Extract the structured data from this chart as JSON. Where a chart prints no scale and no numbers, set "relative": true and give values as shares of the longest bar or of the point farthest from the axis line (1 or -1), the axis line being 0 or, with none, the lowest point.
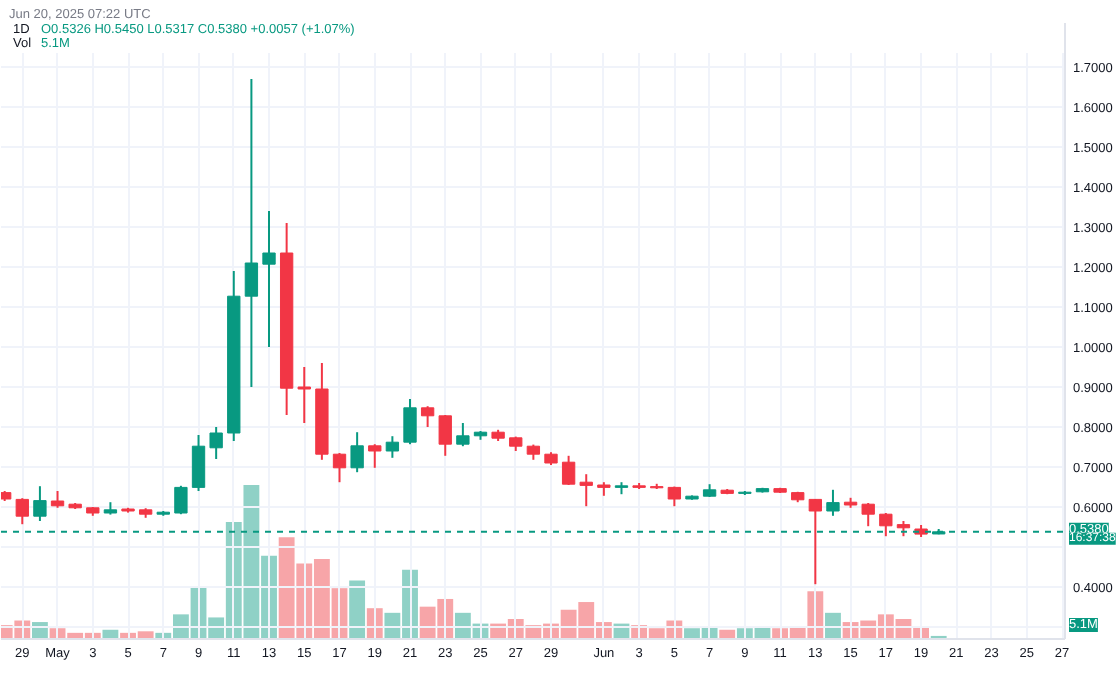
{
  "chart_data": [
    {
      "type": "candlestick",
      "title": "1D",
      "subtitle": "O0.5326 H0.5450 L0.5317 C0.5380 +0.0057 (+1.07%)",
      "annotations": [
        "Jun 20, 2025 07:22 UTC",
        "16:37:38"
      ],
      "x": [
        "2025-04-28",
        "2025-04-29",
        "2025-04-30",
        "2025-05-01",
        "2025-05-02",
        "2025-05-03",
        "2025-05-04",
        "2025-05-05",
        "2025-05-06",
        "2025-05-07",
        "2025-05-08",
        "2025-05-09",
        "2025-05-10",
        "2025-05-11",
        "2025-05-12",
        "2025-05-13",
        "2025-05-14",
        "2025-05-15",
        "2025-05-16",
        "2025-05-17",
        "2025-05-18",
        "2025-05-19",
        "2025-05-20",
        "2025-05-21",
        "2025-05-22",
        "2025-05-23",
        "2025-05-24",
        "2025-05-25",
        "2025-05-26",
        "2025-05-27",
        "2025-05-28",
        "2025-05-29",
        "2025-05-30",
        "2025-05-31",
        "2025-06-01",
        "2025-06-02",
        "2025-06-03",
        "2025-06-04",
        "2025-06-05",
        "2025-06-06",
        "2025-06-07",
        "2025-06-08",
        "2025-06-09",
        "2025-06-10",
        "2025-06-11",
        "2025-06-12",
        "2025-06-13",
        "2025-06-14",
        "2025-06-15",
        "2025-06-16",
        "2025-06-17",
        "2025-06-18",
        "2025-06-19",
        "2025-06-20"
      ],
      "ohlc": [
        [
          0.636,
          0.64,
          0.615,
          0.62
        ],
        [
          0.619,
          0.622,
          0.557,
          0.577
        ],
        [
          0.577,
          0.652,
          0.565,
          0.616
        ],
        [
          0.615,
          0.64,
          0.598,
          0.603
        ],
        [
          0.607,
          0.61,
          0.595,
          0.598
        ],
        [
          0.598,
          0.6,
          0.578,
          0.585
        ],
        [
          0.585,
          0.612,
          0.581,
          0.593
        ],
        [
          0.595,
          0.598,
          0.586,
          0.59
        ],
        [
          0.593,
          0.597,
          0.573,
          0.582
        ],
        [
          0.582,
          0.59,
          0.578,
          0.587
        ],
        [
          0.585,
          0.653,
          0.582,
          0.649
        ],
        [
          0.649,
          0.78,
          0.64,
          0.752
        ],
        [
          0.748,
          0.8,
          0.72,
          0.785
        ],
        [
          0.785,
          1.19,
          0.765,
          1.127
        ],
        [
          1.127,
          1.67,
          0.9,
          1.21
        ],
        [
          1.207,
          1.34,
          1.0,
          1.235
        ],
        [
          1.235,
          1.31,
          0.83,
          0.897
        ],
        [
          0.9,
          0.95,
          0.81,
          0.895
        ],
        [
          0.895,
          0.96,
          0.718,
          0.732
        ],
        [
          0.732,
          0.735,
          0.662,
          0.698
        ],
        [
          0.698,
          0.787,
          0.687,
          0.753
        ],
        [
          0.753,
          0.757,
          0.698,
          0.74
        ],
        [
          0.74,
          0.777,
          0.723,
          0.762
        ],
        [
          0.762,
          0.87,
          0.757,
          0.848
        ],
        [
          0.848,
          0.852,
          0.8,
          0.828
        ],
        [
          0.828,
          0.83,
          0.728,
          0.757
        ],
        [
          0.757,
          0.81,
          0.752,
          0.778
        ],
        [
          0.778,
          0.79,
          0.768,
          0.787
        ],
        [
          0.787,
          0.793,
          0.765,
          0.772
        ],
        [
          0.773,
          0.776,
          0.74,
          0.752
        ],
        [
          0.752,
          0.756,
          0.718,
          0.732
        ],
        [
          0.732,
          0.737,
          0.705,
          0.71
        ],
        [
          0.712,
          0.728,
          0.655,
          0.657
        ],
        [
          0.662,
          0.682,
          0.602,
          0.654
        ],
        [
          0.655,
          0.662,
          0.628,
          0.649
        ],
        [
          0.649,
          0.662,
          0.632,
          0.653
        ],
        [
          0.653,
          0.66,
          0.645,
          0.649
        ],
        [
          0.651,
          0.658,
          0.645,
          0.648
        ],
        [
          0.649,
          0.651,
          0.602,
          0.62
        ],
        [
          0.62,
          0.629,
          0.618,
          0.627
        ],
        [
          0.627,
          0.657,
          0.625,
          0.643
        ],
        [
          0.642,
          0.645,
          0.632,
          0.634
        ],
        [
          0.634,
          0.64,
          0.63,
          0.637
        ],
        [
          0.638,
          0.648,
          0.636,
          0.646
        ],
        [
          0.646,
          0.648,
          0.635,
          0.637
        ],
        [
          0.636,
          0.638,
          0.612,
          0.618
        ],
        [
          0.619,
          0.62,
          0.407,
          0.59
        ],
        [
          0.59,
          0.643,
          0.578,
          0.611
        ],
        [
          0.612,
          0.623,
          0.598,
          0.605
        ],
        [
          0.607,
          0.61,
          0.552,
          0.582
        ],
        [
          0.582,
          0.585,
          0.527,
          0.553
        ],
        [
          0.556,
          0.565,
          0.527,
          0.548
        ],
        [
          0.545,
          0.555,
          0.525,
          0.5323
        ],
        [
          0.5326,
          0.545,
          0.5317,
          0.538
        ]
      ],
      "colors": [
        "#f23645",
        "#f23645",
        "#089981",
        "#f23645",
        "#f23645",
        "#f23645",
        "#089981",
        "#f23645",
        "#f23645",
        "#089981",
        "#089981",
        "#089981",
        "#089981",
        "#089981",
        "#089981",
        "#089981",
        "#f23645",
        "#f23645",
        "#f23645",
        "#f23645",
        "#089981",
        "#f23645",
        "#089981",
        "#089981",
        "#f23645",
        "#f23645",
        "#089981",
        "#089981",
        "#f23645",
        "#f23645",
        "#f23645",
        "#f23645",
        "#f23645",
        "#f23645",
        "#f23645",
        "#089981",
        "#f23645",
        "#f23645",
        "#f23645",
        "#089981",
        "#089981",
        "#f23645",
        "#089981",
        "#089981",
        "#f23645",
        "#f23645",
        "#f23645",
        "#089981",
        "#f23645",
        "#f23645",
        "#f23645",
        "#f23645",
        "#f23645",
        "#089981"
      ],
      "xlim": [
        "2025-04-27T19:00",
        "2025-06-27T04:00"
      ],
      "xticks": [
        {
          "value": "2025-04-29",
          "label": "29"
        },
        {
          "value": "2025-05-01",
          "label": "May"
        },
        {
          "value": "2025-05-03",
          "label": "3"
        },
        {
          "value": "2025-05-05",
          "label": "5"
        },
        {
          "value": "2025-05-07",
          "label": "7"
        },
        {
          "value": "2025-05-09",
          "label": "9"
        },
        {
          "value": "2025-05-11",
          "label": "11"
        },
        {
          "value": "2025-05-13",
          "label": "13"
        },
        {
          "value": "2025-05-15",
          "label": "15"
        },
        {
          "value": "2025-05-17",
          "label": "17"
        },
        {
          "value": "2025-05-19",
          "label": "19"
        },
        {
          "value": "2025-05-21",
          "label": "21"
        },
        {
          "value": "2025-05-23",
          "label": "23"
        },
        {
          "value": "2025-05-25",
          "label": "25"
        },
        {
          "value": "2025-05-27",
          "label": "27"
        },
        {
          "value": "2025-05-29",
          "label": "29"
        },
        {
          "value": "2025-06-01",
          "label": "Jun"
        },
        {
          "value": "2025-06-03",
          "label": "3"
        },
        {
          "value": "2025-06-05",
          "label": "5"
        },
        {
          "value": "2025-06-07",
          "label": "7"
        },
        {
          "value": "2025-06-09",
          "label": "9"
        },
        {
          "value": "2025-06-11",
          "label": "11"
        },
        {
          "value": "2025-06-13",
          "label": "13"
        },
        {
          "value": "2025-06-15",
          "label": "15"
        },
        {
          "value": "2025-06-17",
          "label": "17"
        },
        {
          "value": "2025-06-19",
          "label": "19"
        },
        {
          "value": "2025-06-21",
          "label": "21"
        },
        {
          "value": "2025-06-23",
          "label": "23"
        },
        {
          "value": "2025-06-25",
          "label": "25"
        },
        {
          "value": "2025-06-27",
          "label": "27"
        }
      ],
      "ylim": [
        0.27,
        1.81
      ],
      "yticks": [
        {
          "value": 0.3,
          "label": null
        },
        {
          "value": 0.4,
          "label": "0.4000"
        },
        {
          "value": 0.5,
          "label": null
        },
        {
          "value": 0.6,
          "label": "0.6000"
        },
        {
          "value": 0.7,
          "label": "0.7000"
        },
        {
          "value": 0.8,
          "label": "0.8000"
        },
        {
          "value": 0.9,
          "label": "0.9000"
        },
        {
          "value": 1.0,
          "label": "1.0000"
        },
        {
          "value": 1.1,
          "label": "1.1000"
        },
        {
          "value": 1.2,
          "label": "1.2000"
        },
        {
          "value": 1.3,
          "label": "1.3000"
        },
        {
          "value": 1.4,
          "label": "1.4000"
        },
        {
          "value": 1.5,
          "label": "1.5000"
        },
        {
          "value": 1.6,
          "label": "1.6000"
        },
        {
          "value": 1.7,
          "label": "1.7000"
        }
      ],
      "ref_lines": [
        {
          "axis": "y",
          "value": 0.538,
          "label": "0.5380",
          "color": "#089981",
          "line_style": "dashed"
        }
      ],
      "grid": true
    },
    {
      "type": "bar",
      "relative": true,
      "tick_labels": false,
      "annotations": [
        "Vol",
        "5.1M",
        "5.1M"
      ],
      "x": [
        "2025-04-28",
        "2025-04-29",
        "2025-04-30",
        "2025-05-01",
        "2025-05-02",
        "2025-05-03",
        "2025-05-04",
        "2025-05-05",
        "2025-05-06",
        "2025-05-07",
        "2025-05-08",
        "2025-05-09",
        "2025-05-10",
        "2025-05-11",
        "2025-05-12",
        "2025-05-13",
        "2025-05-14",
        "2025-05-15",
        "2025-05-16",
        "2025-05-17",
        "2025-05-18",
        "2025-05-19",
        "2025-05-20",
        "2025-05-21",
        "2025-05-22",
        "2025-05-23",
        "2025-05-24",
        "2025-05-25",
        "2025-05-26",
        "2025-05-27",
        "2025-05-28",
        "2025-05-29",
        "2025-05-30",
        "2025-05-31",
        "2025-06-01",
        "2025-06-02",
        "2025-06-03",
        "2025-06-04",
        "2025-06-05",
        "2025-06-06",
        "2025-06-07",
        "2025-06-08",
        "2025-06-09",
        "2025-06-10",
        "2025-06-11",
        "2025-06-12",
        "2025-06-13",
        "2025-06-14",
        "2025-06-15",
        "2025-06-16",
        "2025-06-17",
        "2025-06-18",
        "2025-06-19",
        "2025-06-20"
      ],
      "xlim": [
        "2025-04-27T19:00",
        "2025-06-27T04:00"
      ],
      "values": [
        0.09,
        0.12,
        0.11,
        0.07,
        0.04,
        0.04,
        0.06,
        0.04,
        0.05,
        0.04,
        0.16,
        0.34,
        0.14,
        0.76,
        1,
        0.54,
        0.66,
        0.49,
        0.52,
        0.33,
        0.38,
        0.2,
        0.17,
        0.45,
        0.21,
        0.26,
        0.17,
        0.1,
        0.1,
        0.13,
        0.09,
        0.1,
        0.19,
        0.24,
        0.11,
        0.1,
        0.09,
        0.07,
        0.12,
        0.07,
        0.08,
        0.06,
        0.07,
        0.08,
        0.07,
        0.08,
        0.31,
        0.17,
        0.11,
        0.12,
        0.16,
        0.13,
        0.08,
        0.02
      ],
      "colors": [
        "#f7a5a8",
        "#f7a5a8",
        "#8fd1c6",
        "#f7a5a8",
        "#f7a5a8",
        "#f7a5a8",
        "#8fd1c6",
        "#f7a5a8",
        "#f7a5a8",
        "#8fd1c6",
        "#8fd1c6",
        "#8fd1c6",
        "#8fd1c6",
        "#8fd1c6",
        "#8fd1c6",
        "#8fd1c6",
        "#f7a5a8",
        "#f7a5a8",
        "#f7a5a8",
        "#f7a5a8",
        "#8fd1c6",
        "#f7a5a8",
        "#8fd1c6",
        "#8fd1c6",
        "#f7a5a8",
        "#f7a5a8",
        "#8fd1c6",
        "#8fd1c6",
        "#f7a5a8",
        "#f7a5a8",
        "#f7a5a8",
        "#f7a5a8",
        "#f7a5a8",
        "#f7a5a8",
        "#f7a5a8",
        "#8fd1c6",
        "#f7a5a8",
        "#f7a5a8",
        "#f7a5a8",
        "#8fd1c6",
        "#8fd1c6",
        "#f7a5a8",
        "#8fd1c6",
        "#8fd1c6",
        "#f7a5a8",
        "#f7a5a8",
        "#f7a5a8",
        "#8fd1c6",
        "#f7a5a8",
        "#f7a5a8",
        "#f7a5a8",
        "#f7a5a8",
        "#f7a5a8",
        "#8fd1c6"
      ]
    }
  ]
}
